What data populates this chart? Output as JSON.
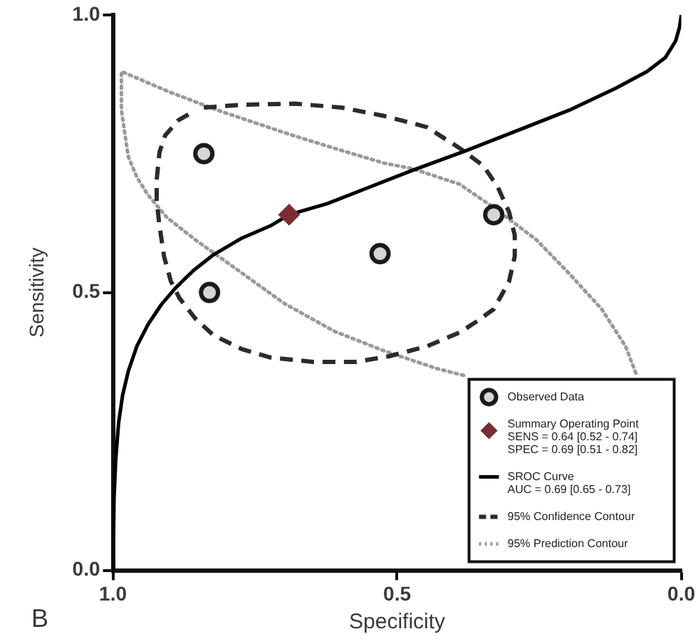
{
  "chart_data": {
    "type": "scatter",
    "xlabel": "Specificity",
    "ylabel": "Sensitivity",
    "xlim": [
      1,
      0
    ],
    "ylim": [
      0,
      1
    ],
    "xticks": [
      {
        "value": 1,
        "label": "1.0"
      },
      {
        "value": 0.5,
        "label": "0.5"
      },
      {
        "value": 0,
        "label": "0.0"
      }
    ],
    "yticks": [
      {
        "value": 0,
        "label": "0.0"
      },
      {
        "value": 0.5,
        "label": "0.5"
      },
      {
        "value": 1,
        "label": "1.0"
      }
    ],
    "legend": "bottom right",
    "annotations": [
      "B"
    ],
    "series": [
      {
        "name": "Observed Data",
        "color": "#1a1a1a",
        "marker": "circle",
        "x": [
          0.84,
          0.83,
          0.53,
          0.33
        ],
        "values": [
          0.75,
          0.5,
          0.57,
          0.64
        ]
      },
      {
        "name": "Summary Operating Point\nSENS = 0.64 [0.52 - 0.74]\nSPEC = 0.69 [0.51 - 0.82]",
        "color": "#7a2e30",
        "marker": "diamond",
        "x": [
          0.69
        ],
        "values": [
          0.64
        ]
      },
      {
        "name": "SROC Curve\nAUC = 0.69 [0.65 - 0.73]",
        "type": "line",
        "color": "#000000",
        "marker": "none",
        "line_style": "solid",
        "x": [
          1.0,
          0.999,
          0.998,
          0.995,
          0.99,
          0.983,
          0.973,
          0.958,
          0.938,
          0.915,
          0.89,
          0.858,
          0.823,
          0.773,
          0.723,
          0.69,
          0.623,
          0.548,
          0.473,
          0.38,
          0.28,
          0.198,
          0.115,
          0.06,
          0.028,
          0.01,
          0.003,
          0.0
        ],
        "values": [
          0.0,
          0.05,
          0.13,
          0.2,
          0.265,
          0.315,
          0.358,
          0.403,
          0.443,
          0.478,
          0.508,
          0.54,
          0.568,
          0.598,
          0.62,
          0.64,
          0.66,
          0.69,
          0.72,
          0.755,
          0.795,
          0.828,
          0.868,
          0.898,
          0.923,
          0.953,
          0.978,
          1.0
        ]
      },
      {
        "name": "95% Confidence Contour",
        "type": "line",
        "color": "#2b2b2b",
        "marker": "none",
        "line_style": "dashed",
        "x": [
          0.84,
          0.773,
          0.68,
          0.598,
          0.523,
          0.448,
          0.39,
          0.348,
          0.323,
          0.303,
          0.293,
          0.293,
          0.303,
          0.33,
          0.36,
          0.39,
          0.448,
          0.515,
          0.573,
          0.648,
          0.723,
          0.773,
          0.823,
          0.855,
          0.883,
          0.898,
          0.91,
          0.918,
          0.923,
          0.923,
          0.918,
          0.908,
          0.885,
          0.86
        ],
        "values": [
          0.833,
          0.838,
          0.84,
          0.833,
          0.818,
          0.798,
          0.76,
          0.728,
          0.69,
          0.645,
          0.603,
          0.565,
          0.52,
          0.47,
          0.448,
          0.428,
          0.403,
          0.385,
          0.375,
          0.375,
          0.383,
          0.398,
          0.423,
          0.453,
          0.49,
          0.52,
          0.565,
          0.62,
          0.665,
          0.703,
          0.753,
          0.783,
          0.81,
          0.825
        ]
      },
      {
        "name": "95% Prediction Contour",
        "type": "line",
        "color": "#9a9a9a",
        "marker": "none",
        "line_style": "dotted",
        "x": [
          0.08,
          0.098,
          0.14,
          0.198,
          0.255,
          0.33,
          0.39,
          0.473,
          0.523,
          0.605,
          0.69,
          0.815,
          0.898,
          0.985,
          0.985,
          0.973,
          0.958,
          0.94,
          0.905,
          0.855,
          0.773,
          0.698,
          0.61,
          0.523,
          0.43,
          0.38
        ],
        "values": [
          0.355,
          0.403,
          0.47,
          0.535,
          0.595,
          0.653,
          0.695,
          0.723,
          0.733,
          0.758,
          0.785,
          0.828,
          0.86,
          0.898,
          0.828,
          0.745,
          0.708,
          0.678,
          0.635,
          0.595,
          0.535,
          0.48,
          0.43,
          0.395,
          0.363,
          0.35
        ]
      }
    ]
  }
}
